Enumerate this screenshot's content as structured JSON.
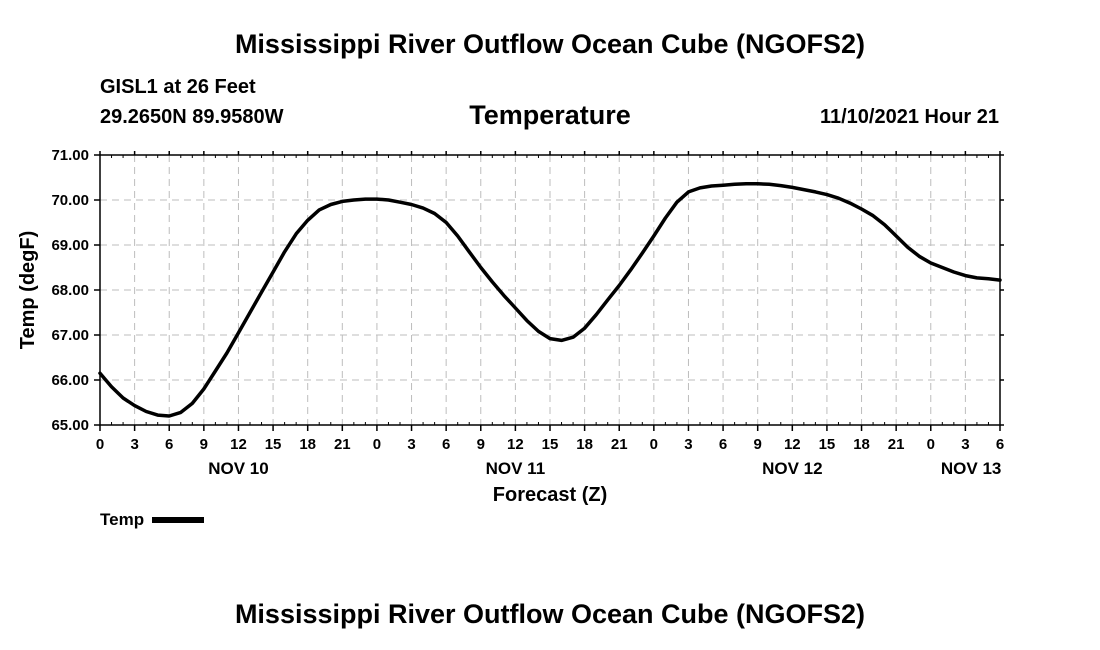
{
  "header": {
    "title": "Mississippi River Outflow Ocean Cube (NGOFS2)",
    "station": "GISL1 at 26 Feet",
    "coordinates": "29.2650N  89.9580W",
    "subtitle": "Temperature",
    "run_time": "11/10/2021 Hour 21",
    "footer_title": "Mississippi River Outflow Ocean Cube (NGOFS2)"
  },
  "legend": {
    "label": "Temp"
  },
  "chart_data": {
    "type": "line",
    "title": "Temperature",
    "xlabel": "Forecast (Z)",
    "ylabel": "Temp (degF)",
    "x_unit": "hours from 00Z NOV 10",
    "xlim": [
      0,
      78
    ],
    "ylim": [
      65.0,
      71.0
    ],
    "grid": true,
    "x_ticks": [
      0,
      3,
      6,
      9,
      12,
      15,
      18,
      21,
      24,
      27,
      30,
      33,
      36,
      39,
      42,
      45,
      48,
      51,
      54,
      57,
      60,
      63,
      66,
      69,
      72,
      75,
      78
    ],
    "x_tick_labels": [
      "0",
      "3",
      "6",
      "9",
      "12",
      "15",
      "18",
      "21",
      "0",
      "3",
      "6",
      "9",
      "12",
      "15",
      "18",
      "21",
      "0",
      "3",
      "6",
      "9",
      "12",
      "15",
      "18",
      "21",
      "0",
      "3",
      "6"
    ],
    "y_ticks": [
      65.0,
      66.0,
      67.0,
      68.0,
      69.0,
      70.0,
      71.0
    ],
    "y_tick_labels": [
      "65.00",
      "66.00",
      "67.00",
      "68.00",
      "69.00",
      "70.00",
      "71.00"
    ],
    "day_labels": [
      {
        "label": "NOV 10",
        "x": 12
      },
      {
        "label": "NOV 11",
        "x": 36
      },
      {
        "label": "NOV 12",
        "x": 60
      },
      {
        "label": "NOV 13",
        "x": 75.5
      }
    ],
    "series": [
      {
        "name": "Temp",
        "color": "#000000",
        "x": [
          0,
          1,
          2,
          3,
          4,
          5,
          6,
          7,
          8,
          9,
          10,
          11,
          12,
          13,
          14,
          15,
          16,
          17,
          18,
          19,
          20,
          21,
          22,
          23,
          24,
          25,
          26,
          27,
          28,
          29,
          30,
          31,
          32,
          33,
          34,
          35,
          36,
          37,
          38,
          39,
          40,
          41,
          42,
          43,
          44,
          45,
          46,
          47,
          48,
          49,
          50,
          51,
          52,
          53,
          54,
          55,
          56,
          57,
          58,
          59,
          60,
          61,
          62,
          63,
          64,
          65,
          66,
          67,
          68,
          69,
          70,
          71,
          72,
          73,
          74,
          75,
          76,
          77,
          78
        ],
        "values": [
          66.15,
          65.85,
          65.6,
          65.43,
          65.3,
          65.22,
          65.2,
          65.28,
          65.48,
          65.8,
          66.2,
          66.6,
          67.05,
          67.5,
          67.95,
          68.4,
          68.85,
          69.25,
          69.55,
          69.78,
          69.9,
          69.97,
          70.0,
          70.02,
          70.02,
          70.0,
          69.95,
          69.9,
          69.82,
          69.7,
          69.5,
          69.2,
          68.85,
          68.5,
          68.18,
          67.88,
          67.6,
          67.32,
          67.08,
          66.92,
          66.88,
          66.95,
          67.15,
          67.45,
          67.78,
          68.1,
          68.45,
          68.82,
          69.2,
          69.6,
          69.95,
          70.18,
          70.27,
          70.31,
          70.33,
          70.35,
          70.36,
          70.36,
          70.35,
          70.32,
          70.28,
          70.23,
          70.18,
          70.12,
          70.04,
          69.93,
          69.8,
          69.65,
          69.45,
          69.2,
          68.95,
          68.75,
          68.6,
          68.5,
          68.4,
          68.32,
          68.27,
          68.25,
          68.22
        ]
      }
    ]
  }
}
